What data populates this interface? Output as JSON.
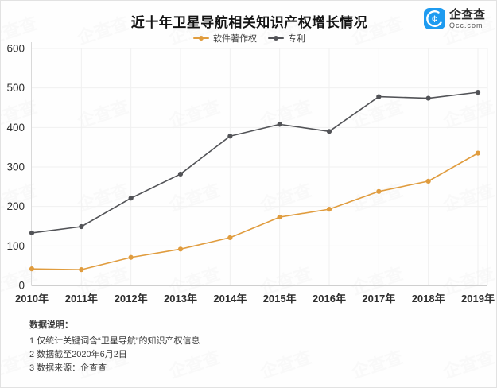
{
  "header": {
    "title": "近十年卫星导航相关知识产权增长情况",
    "logo": {
      "name": "企查查",
      "domain": "Qcc.com",
      "color": "#1E9BF0"
    }
  },
  "watermark": {
    "text": "企查查"
  },
  "chart_data": {
    "type": "line",
    "title": "近十年卫星导航相关知识产权增长情况",
    "categories": [
      "2010年",
      "2011年",
      "2012年",
      "2013年",
      "2014年",
      "2015年",
      "2016年",
      "2017年",
      "2018年",
      "2019年"
    ],
    "series": [
      {
        "name": "软件著作权",
        "color": "#E09C3E",
        "values": [
          42,
          40,
          71,
          92,
          121,
          173,
          193,
          238,
          264,
          335
        ]
      },
      {
        "name": "专利",
        "color": "#525357",
        "values": [
          133,
          149,
          221,
          282,
          378,
          408,
          390,
          478,
          474,
          489
        ]
      }
    ],
    "xlabel": "",
    "ylabel": "",
    "ylim": [
      0,
      600
    ],
    "ytick_step": 100,
    "grid": true,
    "legend_position": "top",
    "axis_color": "#d9d9d9",
    "grid_color": "#f0f0f0",
    "tick_label_color": "#2e2e2e"
  },
  "footer": {
    "heading": "数据说明：",
    "notes": [
      "1 仅统计关键词含“卫星导航”的知识产权信息",
      "2 数据截至2020年6月2日",
      "3 数据来源：企查查"
    ]
  }
}
